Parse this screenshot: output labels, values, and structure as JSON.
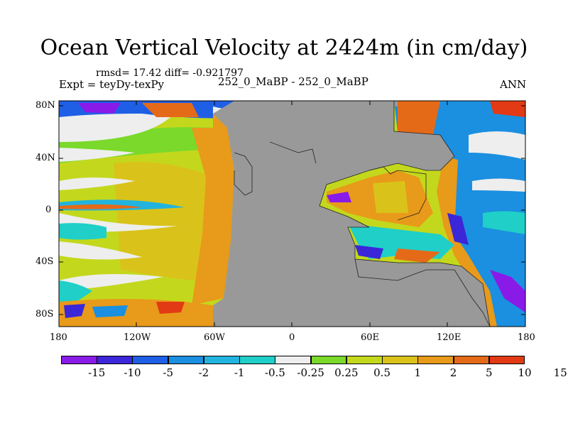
{
  "title": "Ocean Vertical Velocity at 2424m (in cm/day)",
  "stats": "rmsd= 17.42 diff= -0.921797",
  "experiment": "Expt = teyDy-texPy",
  "case": "252_0_MaBP - 252_0_MaBP",
  "season": "ANN",
  "lat_labels": [
    "80N",
    "40N",
    "0",
    "40S",
    "80S"
  ],
  "lon_labels": [
    "180",
    "120W",
    "60W",
    "0",
    "60E",
    "120E",
    "180"
  ],
  "colorbar": {
    "colors": [
      "#8a1ae8",
      "#3b26d8",
      "#1f5fe6",
      "#1b8fe0",
      "#22b3de",
      "#1fcfc8",
      "#eeeeee",
      "#7ad92a",
      "#c3d81c",
      "#d9c31a",
      "#e89a1a",
      "#e56a18",
      "#e23a14"
    ],
    "labels": [
      "-15",
      "-10",
      "-5",
      "-2",
      "-1",
      "-0.5",
      "-0.25",
      "0.25",
      "0.5",
      "1",
      "2",
      "5",
      "10",
      "15"
    ]
  }
}
